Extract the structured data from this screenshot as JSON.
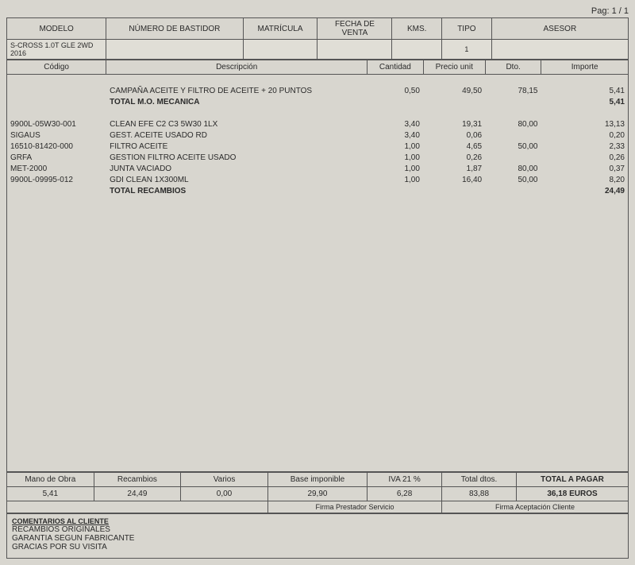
{
  "page_indicator": "Pag: 1 / 1",
  "header": {
    "labels": {
      "modelo": "MODELO",
      "bastidor": "NÚMERO DE BASTIDOR",
      "matricula": "MATRÍCULA",
      "fecha_venta": "FECHA DE VENTA",
      "kms": "KMS.",
      "tipo": "TIPO",
      "asesor": "ASESOR"
    },
    "values": {
      "modelo": "S-CROSS 1.0T GLE 2WD 2016",
      "bastidor": "",
      "matricula": "",
      "fecha_venta": "",
      "kms": "",
      "tipo": "1",
      "asesor": ""
    }
  },
  "columns": {
    "codigo": "Código",
    "descripcion": "Descripción",
    "cantidad": "Cantidad",
    "precio_unit": "Precio unit",
    "dto": "Dto.",
    "importe": "Importe"
  },
  "lines": [
    {
      "type": "spacer"
    },
    {
      "codigo": "",
      "descripcion": "CAMPAÑA ACEITE Y FILTRO DE ACEITE + 20 PUNTOS",
      "cantidad": "0,50",
      "precio": "49,50",
      "dto": "78,15",
      "importe": "5,41"
    },
    {
      "type": "total",
      "descripcion": "TOTAL M.O. MECANICA",
      "importe": "5,41"
    },
    {
      "type": "spacer"
    },
    {
      "codigo": "9900L-05W30-001",
      "descripcion": "CLEAN EFE C2 C3 5W30 1LX",
      "cantidad": "3,40",
      "precio": "19,31",
      "dto": "80,00",
      "importe": "13,13"
    },
    {
      "codigo": "SIGAUS",
      "descripcion": "GEST. ACEITE USADO RD",
      "cantidad": "3,40",
      "precio": "0,06",
      "dto": "",
      "importe": "0,20"
    },
    {
      "codigo": "16510-81420-000",
      "descripcion": "FILTRO ACEITE",
      "cantidad": "1,00",
      "precio": "4,65",
      "dto": "50,00",
      "importe": "2,33"
    },
    {
      "codigo": "GRFA",
      "descripcion": "GESTION FILTRO ACEITE USADO",
      "cantidad": "1,00",
      "precio": "0,26",
      "dto": "",
      "importe": "0,26"
    },
    {
      "codigo": "MET-2000",
      "descripcion": "JUNTA VACIADO",
      "cantidad": "1,00",
      "precio": "1,87",
      "dto": "80,00",
      "importe": "0,37"
    },
    {
      "codigo": "9900L-09995-012",
      "descripcion": "GDI CLEAN 1X300ML",
      "cantidad": "1,00",
      "precio": "16,40",
      "dto": "50,00",
      "importe": "8,20"
    },
    {
      "type": "total",
      "descripcion": "TOTAL RECAMBIOS",
      "importe": "24,49"
    }
  ],
  "footer": {
    "labels": {
      "mano_obra": "Mano de Obra",
      "recambios": "Recambios",
      "varios": "Varios",
      "base_imponible": "Base imponible",
      "iva": "IVA  21 %",
      "total_dtos": "Total dtos.",
      "total_pagar": "TOTAL A PAGAR"
    },
    "values": {
      "mano_obra": "5,41",
      "recambios": "24,49",
      "varios": "0,00",
      "base_imponible": "29,90",
      "iva": "6,28",
      "total_dtos": "83,88",
      "total_pagar": "36,18 EUROS"
    }
  },
  "signatures": {
    "prestador": "Firma Prestador Servicio",
    "cliente": "Firma Aceptación Cliente"
  },
  "comments": {
    "title": "COMENTARIOS AL CLIENTE",
    "line1": "RECAMBIOS ORIGINALES",
    "line2": "GARANTIA SEGUN FABRICANTE",
    "line3": "GRACIAS POR SU VISITA"
  },
  "col_widths": {
    "codigo_pct": 16,
    "descripcion_pct": 42,
    "cantidad_pct": 9,
    "precio_pct": 10,
    "dto_pct": 9,
    "importe_pct": 14
  }
}
